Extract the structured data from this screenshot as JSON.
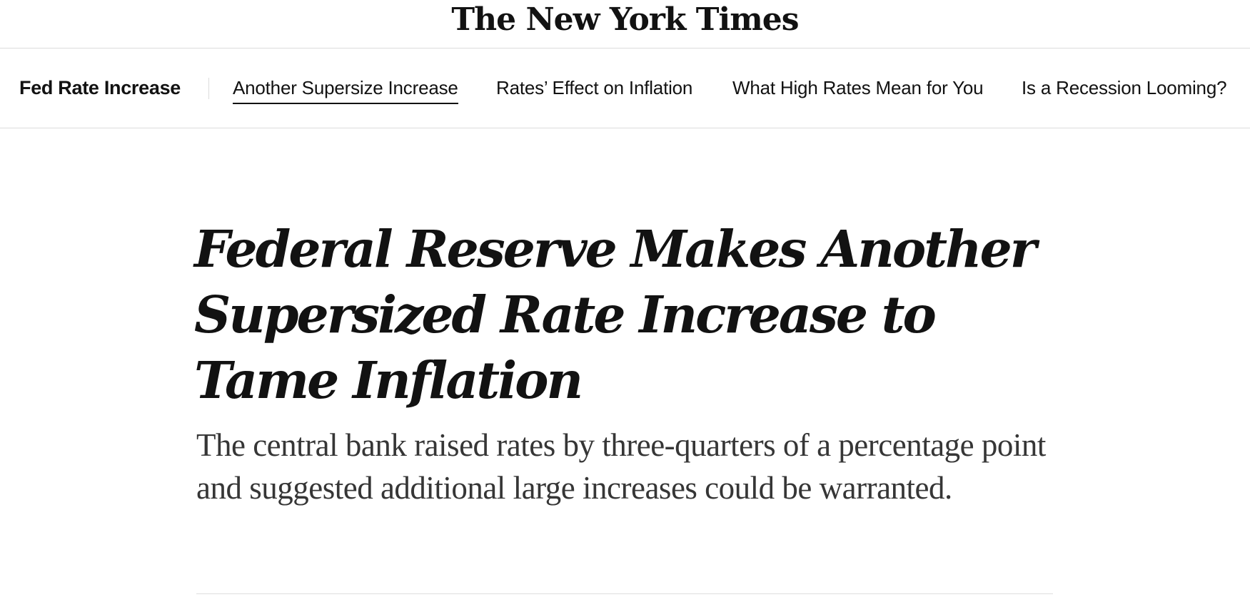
{
  "masthead": {
    "logo_text": "The New York Times"
  },
  "subnav": {
    "section_title": "Fed Rate Increase",
    "links": [
      {
        "label": "Another Supersize Increase",
        "active": true
      },
      {
        "label": "Rates’ Effect on Inflation",
        "active": false
      },
      {
        "label": "What High Rates Mean for You",
        "active": false
      },
      {
        "label": "Is a Recession Looming?",
        "active": false
      }
    ]
  },
  "article": {
    "headline": "Federal Reserve Makes Another Supersized Rate Increase to Tame Inflation",
    "summary": "The central bank raised rates by three-quarters of a percentage point and suggested additional large increases could be warranted."
  }
}
